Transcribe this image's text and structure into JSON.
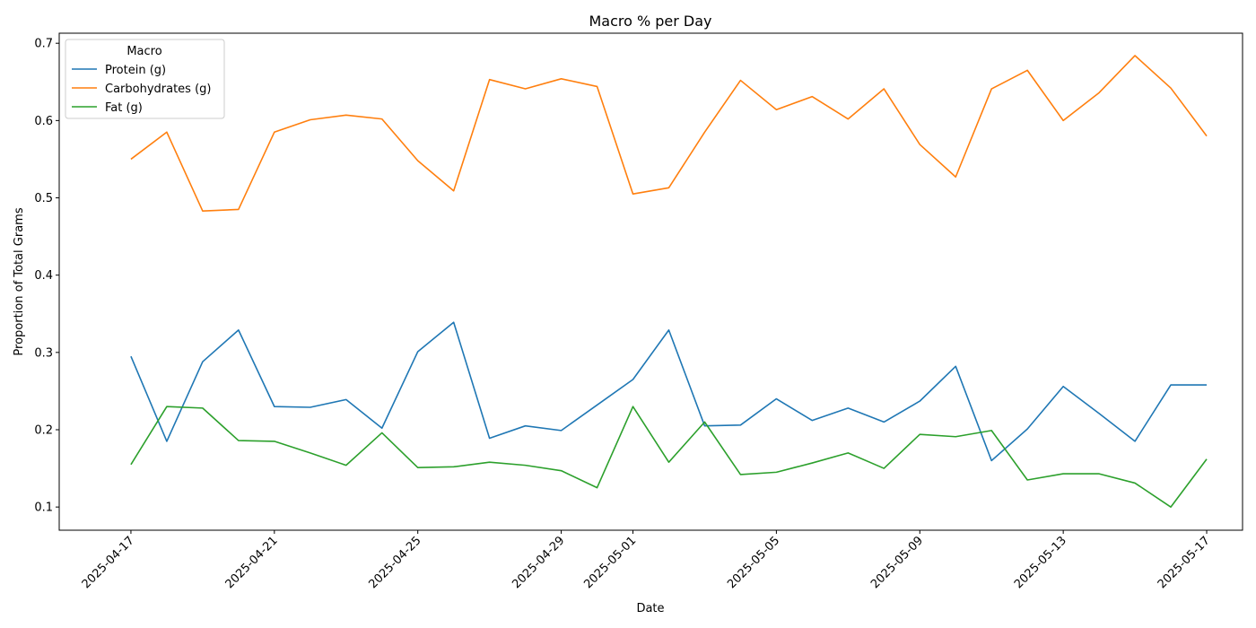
{
  "chart_data": {
    "type": "line",
    "title": "Macro % per Day",
    "xlabel": "Date",
    "ylabel": "Proportion of Total Grams",
    "legend_title": "Macro",
    "legend_position": "top-left",
    "grid": false,
    "xlim": [
      "2025-04-15",
      "2025-05-18"
    ],
    "ylim": [
      0.07,
      0.713
    ],
    "x_ticks": [
      "2025-04-17",
      "2025-04-21",
      "2025-04-25",
      "2025-04-29",
      "2025-05-01",
      "2025-05-05",
      "2025-05-09",
      "2025-05-13",
      "2025-05-17"
    ],
    "y_ticks": [
      0.1,
      0.2,
      0.3,
      0.4,
      0.5,
      0.6,
      0.7
    ],
    "y_tick_labels": [
      "0.1",
      "0.2",
      "0.3",
      "0.4",
      "0.5",
      "0.6",
      "0.7"
    ],
    "x": [
      "2025-04-17",
      "2025-04-18",
      "2025-04-19",
      "2025-04-20",
      "2025-04-21",
      "2025-04-22",
      "2025-04-23",
      "2025-04-24",
      "2025-04-25",
      "2025-04-26",
      "2025-04-27",
      "2025-04-28",
      "2025-04-29",
      "2025-04-30",
      "2025-05-01",
      "2025-05-02",
      "2025-05-03",
      "2025-05-04",
      "2025-05-05",
      "2025-05-06",
      "2025-05-07",
      "2025-05-08",
      "2025-05-09",
      "2025-05-10",
      "2025-05-11",
      "2025-05-12",
      "2025-05-13",
      "2025-05-14",
      "2025-05-15",
      "2025-05-16",
      "2025-05-17"
    ],
    "series": [
      {
        "name": "Protein (g)",
        "color": "#1f77b4",
        "values": [
          0.295,
          0.185,
          0.288,
          0.329,
          0.23,
          0.229,
          0.239,
          0.202,
          0.301,
          0.339,
          0.189,
          0.205,
          0.199,
          0.232,
          0.265,
          0.329,
          0.205,
          0.206,
          0.24,
          0.212,
          0.228,
          0.21,
          0.237,
          0.282,
          0.16,
          0.201,
          0.256,
          0.221,
          0.185,
          0.258,
          0.258
        ]
      },
      {
        "name": "Carbohydrates (g)",
        "color": "#ff7f0e",
        "values": [
          0.55,
          0.585,
          0.483,
          0.485,
          0.585,
          0.601,
          0.607,
          0.602,
          0.548,
          0.509,
          0.653,
          0.641,
          0.654,
          0.644,
          0.505,
          0.513,
          0.585,
          0.652,
          0.614,
          0.631,
          0.602,
          0.641,
          0.569,
          0.527,
          0.641,
          0.665,
          0.6,
          0.636,
          0.684,
          0.642,
          0.58
        ]
      },
      {
        "name": "Fat (g)",
        "color": "#2ca02c",
        "values": [
          0.155,
          0.23,
          0.228,
          0.186,
          0.185,
          0.17,
          0.154,
          0.196,
          0.151,
          0.152,
          0.158,
          0.154,
          0.147,
          0.125,
          0.23,
          0.158,
          0.21,
          0.142,
          0.145,
          0.157,
          0.17,
          0.15,
          0.194,
          0.191,
          0.199,
          0.135,
          0.143,
          0.143,
          0.131,
          0.1,
          0.162
        ]
      }
    ]
  }
}
